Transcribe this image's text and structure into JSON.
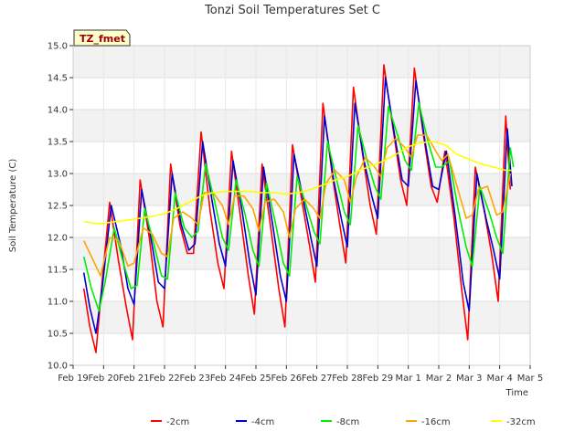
{
  "chart_data": {
    "type": "line",
    "title": "Tonzi Soil Temperatures Set C",
    "xlabel": "Time",
    "ylabel": "Soil Temperature (C)",
    "site_label": "TZ_fmet",
    "ylim": [
      10.0,
      15.0
    ],
    "yticks": [
      10.0,
      10.5,
      11.0,
      11.5,
      12.0,
      12.5,
      13.0,
      13.5,
      14.0,
      14.5,
      15.0
    ],
    "xlim": [
      0,
      15
    ],
    "xticks": [
      {
        "x": 0,
        "label": "Feb 19"
      },
      {
        "x": 1,
        "label": "Feb 20"
      },
      {
        "x": 2,
        "label": "Feb 21"
      },
      {
        "x": 3,
        "label": "Feb 22"
      },
      {
        "x": 4,
        "label": "Feb 23"
      },
      {
        "x": 5,
        "label": "Feb 24"
      },
      {
        "x": 6,
        "label": "Feb 25"
      },
      {
        "x": 7,
        "label": "Feb 26"
      },
      {
        "x": 8,
        "label": "Feb 27"
      },
      {
        "x": 9,
        "label": "Feb 28"
      },
      {
        "x": 10,
        "label": "Feb 29"
      },
      {
        "x": 11,
        "label": "Mar 1"
      },
      {
        "x": 12,
        "label": "Mar 2"
      },
      {
        "x": 13,
        "label": "Mar 3"
      },
      {
        "x": 14,
        "label": "Mar 4"
      },
      {
        "x": 15,
        "label": "Mar 5"
      }
    ],
    "grid": true,
    "legend_position": "bottom",
    "series": [
      {
        "name": "-2cm",
        "color": "#ff0000",
        "x": [
          0.35,
          0.55,
          0.75,
          0.95,
          1.2,
          1.5,
          1.75,
          1.95,
          2.2,
          2.5,
          2.75,
          2.95,
          3.2,
          3.5,
          3.75,
          3.95,
          4.2,
          4.5,
          4.75,
          4.95,
          5.2,
          5.5,
          5.75,
          5.95,
          6.2,
          6.5,
          6.75,
          6.95,
          7.2,
          7.5,
          7.75,
          7.95,
          8.2,
          8.5,
          8.75,
          8.95,
          9.2,
          9.5,
          9.75,
          9.95,
          10.2,
          10.5,
          10.75,
          10.95,
          11.2,
          11.5,
          11.75,
          11.95,
          12.2,
          12.5,
          12.75,
          12.95,
          13.2,
          13.5,
          13.75,
          13.95,
          14.2,
          14.35
        ],
        "y": [
          11.2,
          10.6,
          10.2,
          11.3,
          12.55,
          11.6,
          10.9,
          10.4,
          12.9,
          12.0,
          11.0,
          10.6,
          13.15,
          12.2,
          11.75,
          11.75,
          13.65,
          12.4,
          11.6,
          11.2,
          13.35,
          12.3,
          11.4,
          10.8,
          13.15,
          12.1,
          11.2,
          10.6,
          13.45,
          12.6,
          11.9,
          11.3,
          14.1,
          13.0,
          12.2,
          11.6,
          14.35,
          13.3,
          12.5,
          12.05,
          14.7,
          13.7,
          12.9,
          12.5,
          14.65,
          13.6,
          12.8,
          12.55,
          13.35,
          12.3,
          11.2,
          10.4,
          13.1,
          12.4,
          11.7,
          11.0,
          13.9,
          12.75
        ]
      },
      {
        "name": "-4cm",
        "color": "#0000cc",
        "x": [
          0.35,
          0.55,
          0.75,
          0.95,
          1.25,
          1.55,
          1.8,
          2.0,
          2.25,
          2.55,
          2.8,
          3.0,
          3.25,
          3.55,
          3.8,
          4.0,
          4.25,
          4.55,
          4.8,
          5.0,
          5.25,
          5.55,
          5.8,
          6.0,
          6.25,
          6.55,
          6.8,
          7.0,
          7.25,
          7.55,
          7.8,
          8.0,
          8.25,
          8.55,
          8.8,
          9.0,
          9.25,
          9.55,
          9.8,
          10.0,
          10.25,
          10.55,
          10.8,
          11.0,
          11.25,
          11.55,
          11.8,
          12.0,
          12.25,
          12.55,
          12.8,
          13.0,
          13.25,
          13.55,
          13.8,
          14.0,
          14.25,
          14.4
        ],
        "y": [
          11.45,
          10.9,
          10.5,
          11.2,
          12.5,
          11.9,
          11.2,
          10.95,
          12.75,
          12.0,
          11.3,
          11.2,
          13.0,
          12.2,
          11.8,
          11.9,
          13.5,
          12.6,
          11.9,
          11.55,
          13.2,
          12.4,
          11.6,
          11.1,
          13.1,
          12.2,
          11.4,
          11.0,
          13.3,
          12.6,
          12.0,
          11.55,
          13.9,
          12.9,
          12.3,
          11.85,
          14.1,
          13.2,
          12.65,
          12.3,
          14.5,
          13.6,
          12.9,
          12.8,
          14.45,
          13.5,
          12.8,
          12.75,
          13.35,
          12.3,
          11.3,
          10.85,
          13.0,
          12.3,
          11.8,
          11.35,
          13.7,
          12.8
        ]
      },
      {
        "name": "-8cm",
        "color": "#00ee00",
        "x": [
          0.35,
          0.6,
          0.85,
          1.05,
          1.35,
          1.65,
          1.9,
          2.1,
          2.35,
          2.65,
          2.9,
          3.1,
          3.35,
          3.65,
          3.9,
          4.1,
          4.35,
          4.65,
          4.9,
          5.1,
          5.35,
          5.65,
          5.9,
          6.1,
          6.35,
          6.65,
          6.9,
          7.1,
          7.35,
          7.65,
          7.9,
          8.1,
          8.35,
          8.65,
          8.9,
          9.1,
          9.35,
          9.65,
          9.9,
          10.1,
          10.35,
          10.65,
          10.9,
          11.1,
          11.35,
          11.65,
          11.9,
          12.1,
          12.35,
          12.65,
          12.9,
          13.1,
          13.35,
          13.65,
          13.9,
          14.1,
          14.35,
          14.45
        ],
        "y": [
          11.7,
          11.2,
          10.85,
          11.3,
          12.15,
          11.6,
          11.2,
          11.25,
          12.45,
          11.9,
          11.4,
          11.35,
          12.7,
          12.15,
          12.0,
          12.1,
          13.15,
          12.55,
          12.0,
          11.8,
          12.9,
          12.35,
          11.8,
          11.55,
          12.85,
          12.2,
          11.6,
          11.4,
          12.95,
          12.5,
          12.1,
          11.9,
          13.5,
          12.9,
          12.4,
          12.2,
          13.75,
          13.2,
          12.8,
          12.6,
          14.05,
          13.6,
          13.2,
          13.05,
          14.1,
          13.5,
          13.1,
          13.1,
          13.2,
          12.4,
          11.85,
          11.55,
          12.8,
          12.4,
          12.0,
          11.75,
          13.4,
          13.1
        ]
      },
      {
        "name": "-16cm",
        "color": "#ffa500",
        "x": [
          0.35,
          0.6,
          0.9,
          1.2,
          1.5,
          1.8,
          2.0,
          2.3,
          2.6,
          2.9,
          3.1,
          3.3,
          3.6,
          3.9,
          4.1,
          4.3,
          4.6,
          4.9,
          5.1,
          5.3,
          5.6,
          5.9,
          6.1,
          6.3,
          6.6,
          6.9,
          7.1,
          7.3,
          7.6,
          7.9,
          8.1,
          8.3,
          8.6,
          8.9,
          9.1,
          9.3,
          9.6,
          9.9,
          10.1,
          10.3,
          10.6,
          10.9,
          11.1,
          11.3,
          11.6,
          11.9,
          12.1,
          12.3,
          12.6,
          12.9,
          13.1,
          13.3,
          13.6,
          13.9,
          14.1,
          14.35
        ],
        "y": [
          11.95,
          11.7,
          11.4,
          12.0,
          11.95,
          11.55,
          11.6,
          12.15,
          12.05,
          11.75,
          11.7,
          12.3,
          12.4,
          12.3,
          12.2,
          12.7,
          12.7,
          12.5,
          12.2,
          12.65,
          12.65,
          12.45,
          12.1,
          12.55,
          12.6,
          12.4,
          12.0,
          12.45,
          12.6,
          12.45,
          12.3,
          12.85,
          13.05,
          12.9,
          12.55,
          12.95,
          13.25,
          13.1,
          12.95,
          13.4,
          13.55,
          13.4,
          13.25,
          13.6,
          13.6,
          13.35,
          13.2,
          13.3,
          12.8,
          12.3,
          12.35,
          12.75,
          12.8,
          12.35,
          12.4,
          13.0
        ]
      },
      {
        "name": "-32cm",
        "color": "#ffff00",
        "x": [
          0.35,
          0.7,
          1.0,
          1.4,
          1.8,
          2.2,
          2.6,
          3.0,
          3.4,
          3.8,
          4.2,
          4.6,
          5.0,
          5.4,
          5.8,
          6.2,
          6.6,
          7.0,
          7.4,
          7.8,
          8.2,
          8.6,
          9.0,
          9.4,
          9.8,
          10.2,
          10.6,
          11.0,
          11.4,
          11.8,
          12.2,
          12.6,
          13.0,
          13.4,
          13.8,
          14.2,
          14.4
        ],
        "y": [
          12.25,
          12.22,
          12.22,
          12.25,
          12.27,
          12.3,
          12.33,
          12.37,
          12.45,
          12.55,
          12.65,
          12.7,
          12.72,
          12.72,
          12.72,
          12.7,
          12.7,
          12.68,
          12.7,
          12.75,
          12.82,
          12.9,
          12.95,
          13.05,
          13.12,
          13.2,
          13.3,
          13.42,
          13.48,
          13.5,
          13.45,
          13.3,
          13.22,
          13.15,
          13.1,
          13.05,
          13.05
        ]
      }
    ]
  }
}
